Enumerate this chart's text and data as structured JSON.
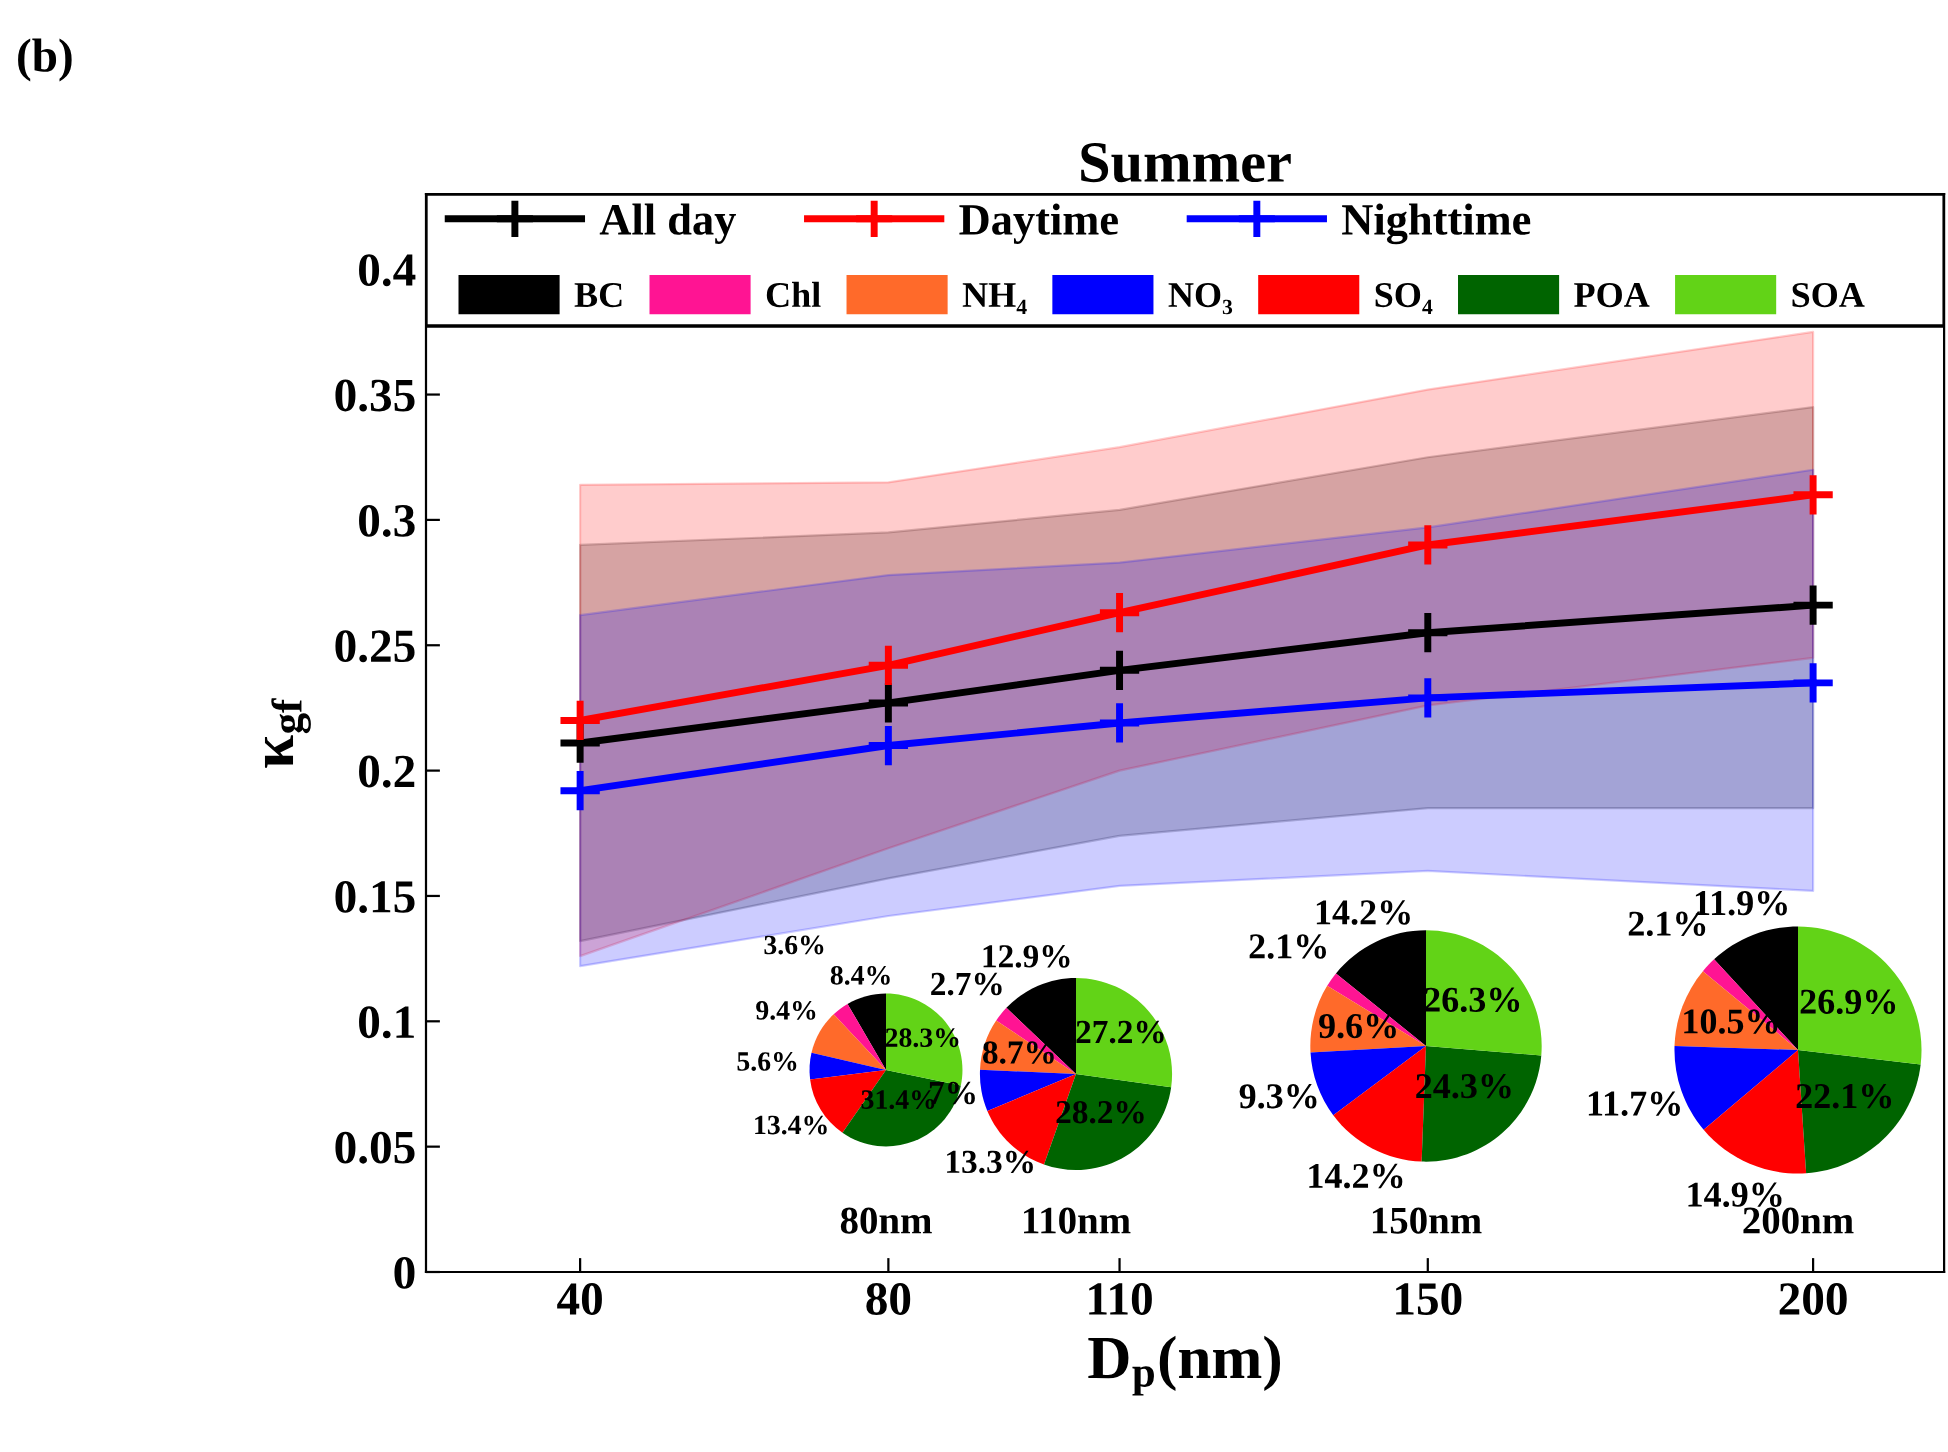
{
  "chart_data": [
    {
      "type": "line",
      "title": "Summer",
      "xlabel": "D$_{p}$(nm)",
      "ylabel": "κ$_{gf}$",
      "annotations": [
        "(b)"
      ],
      "x": [
        40,
        80,
        110,
        150,
        200
      ],
      "xlim": [
        20,
        217
      ],
      "xticks": [
        40,
        80,
        110,
        150,
        200
      ],
      "ylim": [
        0,
        0.43
      ],
      "yticks": [
        0,
        0.05,
        0.1,
        0.15,
        0.2,
        0.25,
        0.3,
        0.35,
        0.4
      ],
      "marker": "cross",
      "line_style": "solid",
      "legend": "top",
      "grid": false,
      "series": [
        {
          "name": "All day",
          "color": "#000000",
          "values": [
            0.211,
            0.227,
            0.24,
            0.255,
            0.266
          ],
          "lower": [
            0.132,
            0.157,
            0.174,
            0.185,
            0.185
          ],
          "upper": [
            0.29,
            0.295,
            0.304,
            0.325,
            0.345
          ]
        },
        {
          "name": "Daytime",
          "color": "#ff0000",
          "values": [
            0.22,
            0.242,
            0.263,
            0.29,
            0.31
          ],
          "lower": [
            0.126,
            0.169,
            0.2,
            0.226,
            0.245
          ],
          "upper": [
            0.314,
            0.315,
            0.329,
            0.352,
            0.375
          ]
        },
        {
          "name": "Nighttime",
          "color": "#0000ff",
          "values": [
            0.192,
            0.21,
            0.219,
            0.229,
            0.235
          ],
          "lower": [
            0.122,
            0.142,
            0.154,
            0.16,
            0.152
          ],
          "upper": [
            0.262,
            0.278,
            0.283,
            0.297,
            0.32
          ]
        }
      ]
    },
    {
      "type": "pie",
      "title": "80nm",
      "legend": "top",
      "categories": [
        "BC",
        "Chl",
        "NH₄",
        "NO₃",
        "SO₄",
        "POA",
        "SOA"
      ],
      "values": [
        8.4,
        3.6,
        9.4,
        5.6,
        13.4,
        31.4,
        28.3
      ],
      "value_labels": [
        "8.4%",
        "3.6%",
        "9.4%",
        "5.6%",
        "13.4%",
        "31.4%",
        "28.3%"
      ],
      "colors": [
        "#000000",
        "#ff1493",
        "#ff6a2a",
        "#0000ff",
        "#ff0000",
        "#006400",
        "#62d317"
      ]
    },
    {
      "type": "pie",
      "title": "110nm",
      "categories": [
        null,
        null,
        null,
        null,
        null,
        null,
        null
      ],
      "values": [
        12.9,
        2.7,
        8.7,
        7,
        13.3,
        28.2,
        27.2
      ],
      "value_labels": [
        "12.9%",
        "2.7%",
        "8.7%",
        "7%",
        "13.3%",
        "28.2%",
        "27.2%"
      ],
      "colors": [
        "#000000",
        "#ff1493",
        "#ff6a2a",
        "#0000ff",
        "#ff0000",
        "#006400",
        "#62d317"
      ]
    },
    {
      "type": "pie",
      "title": "150nm",
      "categories": [
        null,
        null,
        null,
        null,
        null,
        null,
        null
      ],
      "values": [
        14.2,
        2.1,
        9.6,
        9.3,
        14.2,
        24.3,
        26.3
      ],
      "value_labels": [
        "14.2%",
        "2.1%",
        "9.6%",
        "9.3%",
        "14.2%",
        "24.3%",
        "26.3%"
      ],
      "colors": [
        "#000000",
        "#ff1493",
        "#ff6a2a",
        "#0000ff",
        "#ff0000",
        "#006400",
        "#62d317"
      ]
    },
    {
      "type": "pie",
      "title": "200nm",
      "categories": [
        null,
        null,
        null,
        null,
        null,
        null,
        null
      ],
      "values": [
        11.9,
        2.1,
        10.5,
        11.7,
        14.9,
        22.1,
        26.9
      ],
      "value_labels": [
        "11.9%",
        "2.1%",
        "10.5%",
        "11.7%",
        "14.9%",
        "22.1%",
        "26.9%"
      ],
      "colors": [
        "#000000",
        "#ff1493",
        "#ff6a2a",
        "#0000ff",
        "#ff0000",
        "#006400",
        "#62d317"
      ]
    }
  ]
}
